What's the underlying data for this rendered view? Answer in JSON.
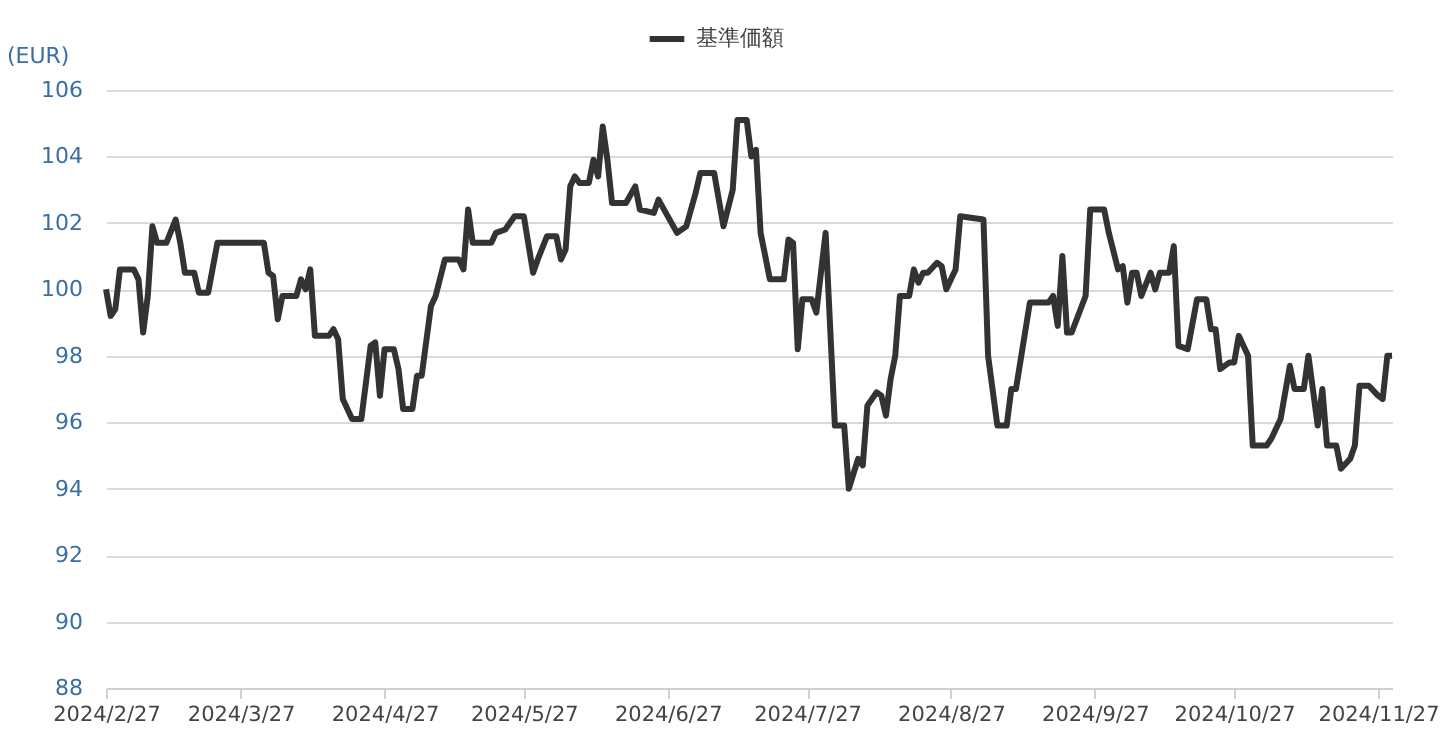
{
  "chart_data": {
    "type": "line",
    "ylabel": "(EUR)",
    "legend": "top",
    "grid": "y",
    "line_style": "solid",
    "marker": "none",
    "ylim": [
      88,
      106
    ],
    "yticks": [
      88,
      90,
      92,
      94,
      96,
      98,
      100,
      102,
      104,
      106
    ],
    "xlim": [
      "2024-02-27",
      "2024-11-30"
    ],
    "xticks": [
      {
        "value": "2024-02-27",
        "label": "2024/2/27"
      },
      {
        "value": "2024-03-27",
        "label": "2024/3/27"
      },
      {
        "value": "2024-04-27",
        "label": "2024/4/27"
      },
      {
        "value": "2024-05-27",
        "label": "2024/5/27"
      },
      {
        "value": "2024-06-27",
        "label": "2024/6/27"
      },
      {
        "value": "2024-07-27",
        "label": "2024/7/27"
      },
      {
        "value": "2024-08-27",
        "label": "2024/8/27"
      },
      {
        "value": "2024-09-27",
        "label": "2024/9/27"
      },
      {
        "value": "2024-10-27",
        "label": "2024/10/27"
      },
      {
        "value": "2024-11-27",
        "label": "2024/11/27"
      }
    ],
    "x": [
      "2024-02-27",
      "2024-02-28",
      "2024-02-29",
      "2024-03-01",
      "2024-03-04",
      "2024-03-05",
      "2024-03-06",
      "2024-03-07",
      "2024-03-08",
      "2024-03-09",
      "2024-03-11",
      "2024-03-13",
      "2024-03-14",
      "2024-03-15",
      "2024-03-17",
      "2024-03-18",
      "2024-03-20",
      "2024-03-22",
      "2024-04-01",
      "2024-04-02",
      "2024-04-03",
      "2024-04-04",
      "2024-04-05",
      "2024-04-08",
      "2024-04-09",
      "2024-04-10",
      "2024-04-11",
      "2024-04-12",
      "2024-04-15",
      "2024-04-16",
      "2024-04-17",
      "2024-04-18",
      "2024-04-20",
      "2024-04-22",
      "2024-04-24",
      "2024-04-25",
      "2024-04-26",
      "2024-04-27",
      "2024-04-29",
      "2024-04-30",
      "2024-05-01",
      "2024-05-03",
      "2024-05-04",
      "2024-05-05",
      "2024-05-07",
      "2024-05-08",
      "2024-05-10",
      "2024-05-13",
      "2024-05-14",
      "2024-05-15",
      "2024-05-16",
      "2024-05-20",
      "2024-05-21",
      "2024-05-23",
      "2024-05-25",
      "2024-05-27",
      "2024-05-29",
      "2024-05-30",
      "2024-06-01",
      "2024-06-03",
      "2024-06-04",
      "2024-06-05",
      "2024-06-06",
      "2024-06-07",
      "2024-06-08",
      "2024-06-10",
      "2024-06-11",
      "2024-06-12",
      "2024-06-13",
      "2024-06-14",
      "2024-06-15",
      "2024-06-17",
      "2024-06-18",
      "2024-06-20",
      "2024-06-21",
      "2024-06-24",
      "2024-06-25",
      "2024-06-29",
      "2024-07-01",
      "2024-07-03",
      "2024-07-04",
      "2024-07-07",
      "2024-07-09",
      "2024-07-11",
      "2024-07-12",
      "2024-07-14",
      "2024-07-15",
      "2024-07-16",
      "2024-07-17",
      "2024-07-19",
      "2024-07-22",
      "2024-07-23",
      "2024-07-24",
      "2024-07-25",
      "2024-07-26",
      "2024-07-28",
      "2024-07-29",
      "2024-07-31",
      "2024-08-02",
      "2024-08-04",
      "2024-08-05",
      "2024-08-07",
      "2024-08-08",
      "2024-08-09",
      "2024-08-11",
      "2024-08-12",
      "2024-08-13",
      "2024-08-14",
      "2024-08-15",
      "2024-08-16",
      "2024-08-18",
      "2024-08-19",
      "2024-08-20",
      "2024-08-21",
      "2024-08-22",
      "2024-08-24",
      "2024-08-25",
      "2024-08-26",
      "2024-08-28",
      "2024-08-29",
      "2024-09-03",
      "2024-09-04",
      "2024-09-06",
      "2024-09-08",
      "2024-09-09",
      "2024-09-10",
      "2024-09-13",
      "2024-09-17",
      "2024-09-18",
      "2024-09-19",
      "2024-09-20",
      "2024-09-21",
      "2024-09-22",
      "2024-09-25",
      "2024-09-26",
      "2024-09-29",
      "2024-09-30",
      "2024-10-02",
      "2024-10-03",
      "2024-10-04",
      "2024-10-05",
      "2024-10-06",
      "2024-10-07",
      "2024-10-09",
      "2024-10-10",
      "2024-10-11",
      "2024-10-13",
      "2024-10-14",
      "2024-10-15",
      "2024-10-17",
      "2024-10-19",
      "2024-10-21",
      "2024-10-22",
      "2024-10-23",
      "2024-10-24",
      "2024-10-26",
      "2024-10-27",
      "2024-10-28",
      "2024-10-30",
      "2024-10-31",
      "2024-11-03",
      "2024-11-04",
      "2024-11-06",
      "2024-11-08",
      "2024-11-09",
      "2024-11-11",
      "2024-11-12",
      "2024-11-14",
      "2024-11-15",
      "2024-11-16",
      "2024-11-18",
      "2024-11-19",
      "2024-11-21",
      "2024-11-22",
      "2024-11-23",
      "2024-11-25",
      "2024-11-27",
      "2024-11-28",
      "2024-11-29",
      "2024-11-30"
    ],
    "series": [
      {
        "name": "基準価額",
        "color": "#333333",
        "values": [
          100.0,
          99.2,
          99.4,
          100.6,
          100.6,
          100.3,
          98.7,
          99.8,
          101.9,
          101.4,
          101.4,
          102.1,
          101.4,
          100.5,
          100.5,
          99.9,
          99.9,
          101.4,
          101.4,
          100.5,
          100.4,
          99.1,
          99.8,
          99.8,
          100.3,
          100.0,
          100.6,
          98.6,
          98.6,
          98.8,
          98.5,
          96.7,
          96.1,
          96.1,
          98.3,
          98.4,
          96.8,
          98.2,
          98.2,
          97.6,
          96.4,
          96.4,
          97.4,
          97.4,
          99.5,
          99.8,
          100.9,
          100.9,
          100.6,
          102.4,
          101.4,
          101.4,
          101.7,
          101.8,
          102.2,
          102.2,
          100.5,
          100.9,
          101.6,
          101.6,
          100.9,
          101.2,
          103.1,
          103.4,
          103.2,
          103.2,
          103.9,
          103.4,
          104.9,
          103.9,
          102.6,
          102.6,
          102.6,
          103.1,
          102.4,
          102.3,
          102.7,
          101.7,
          101.9,
          102.9,
          103.5,
          103.5,
          101.9,
          103.0,
          105.1,
          105.1,
          104.0,
          104.2,
          101.7,
          100.3,
          100.3,
          101.5,
          101.4,
          98.2,
          99.7,
          99.7,
          99.3,
          101.7,
          95.9,
          95.9,
          94.0,
          94.9,
          94.7,
          96.5,
          96.9,
          96.8,
          96.2,
          97.3,
          98.0,
          99.8,
          99.8,
          100.6,
          100.2,
          100.5,
          100.5,
          100.8,
          100.7,
          100.0,
          100.6,
          102.2,
          102.1,
          98.0,
          95.9,
          95.9,
          97.0,
          97.0,
          99.6,
          99.6,
          99.8,
          98.9,
          101.0,
          98.7,
          98.7,
          99.8,
          102.4,
          102.4,
          101.7,
          100.6,
          100.7,
          99.6,
          100.5,
          100.5,
          99.8,
          100.5,
          100.0,
          100.5,
          100.5,
          101.3,
          98.3,
          98.2,
          99.7,
          99.7,
          98.8,
          98.8,
          97.6,
          97.8,
          97.8,
          98.6,
          98.0,
          95.3,
          95.3,
          95.5,
          96.1,
          97.7,
          97.0,
          97.0,
          98.0,
          95.9,
          97.0,
          95.3,
          95.3,
          94.6,
          94.9,
          95.3,
          97.1,
          97.1,
          96.8,
          96.7,
          98.0,
          98.0
        ]
      }
    ]
  }
}
